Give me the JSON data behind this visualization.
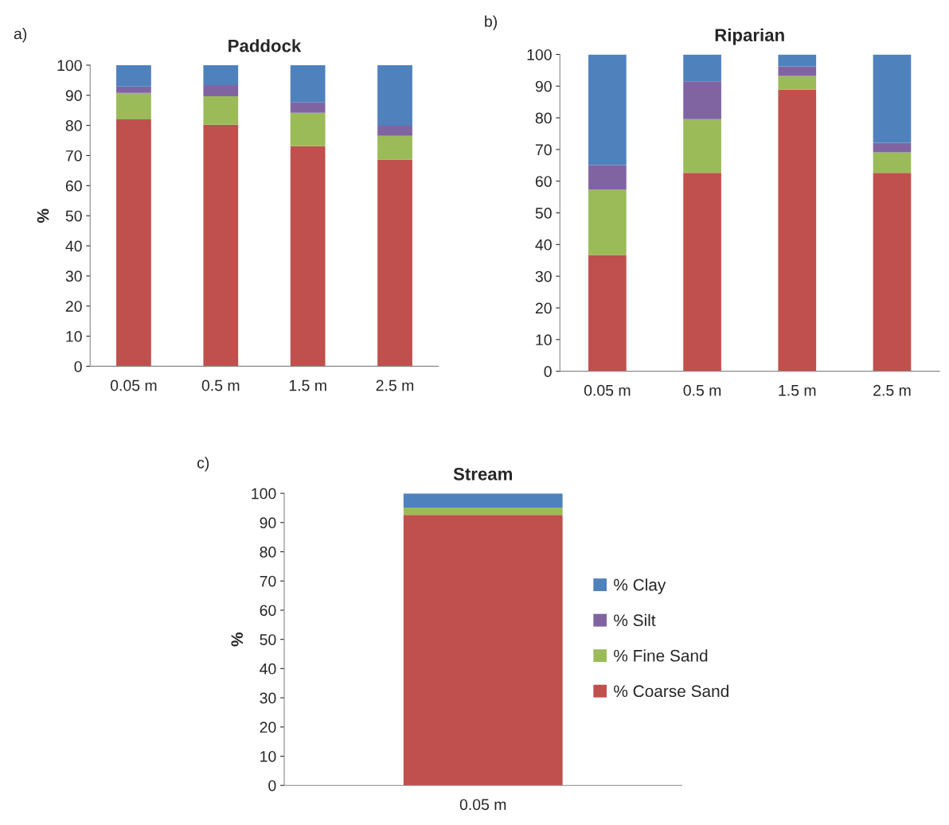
{
  "chart_data": [
    {
      "type": "bar",
      "stacked": true,
      "title": "Paddock",
      "ylabel": "%",
      "annotations": [
        "a)"
      ],
      "categories": [
        "0.05 m",
        "0.5 m",
        "1.5 m",
        "2.5 m"
      ],
      "ylim": [
        0,
        100
      ],
      "yticks": [
        0,
        10,
        20,
        30,
        40,
        50,
        60,
        70,
        80,
        90,
        100
      ],
      "grid": false,
      "legend": false,
      "series": [
        {
          "color": "#c0504d",
          "values": [
            82,
            80.2,
            73.1,
            68.6
          ]
        },
        {
          "color": "#9bbb59",
          "values": [
            8.8,
            9.5,
            11.1,
            7.9
          ]
        },
        {
          "color": "#8064a2",
          "values": [
            2.1,
            3.7,
            3.4,
            3.4
          ]
        },
        {
          "color": "#4f81bd",
          "values": [
            7.1,
            6.6,
            12.4,
            20.1
          ]
        }
      ]
    },
    {
      "type": "bar",
      "stacked": true,
      "title": "Riparian",
      "annotations": [
        "b)"
      ],
      "categories": [
        "0.05 m",
        "0.5 m",
        "1.5 m",
        "2.5 m"
      ],
      "ylim": [
        0,
        100
      ],
      "yticks": [
        0,
        10,
        20,
        30,
        40,
        50,
        60,
        70,
        80,
        90,
        100
      ],
      "grid": false,
      "legend": false,
      "series": [
        {
          "color": "#c0504d",
          "values": [
            36.7,
            62.6,
            88.9,
            62.6
          ]
        },
        {
          "color": "#9bbb59",
          "values": [
            20.6,
            17,
            4.3,
            6.5
          ]
        },
        {
          "color": "#8064a2",
          "values": [
            7.8,
            11.9,
            3,
            3
          ]
        },
        {
          "color": "#4f81bd",
          "values": [
            34.9,
            8.5,
            3.8,
            27.9
          ]
        }
      ]
    },
    {
      "type": "bar",
      "stacked": true,
      "title": "Stream",
      "ylabel": "%",
      "annotations": [
        "c)"
      ],
      "categories": [
        "0.05 m"
      ],
      "ylim": [
        0,
        100
      ],
      "yticks": [
        0,
        10,
        20,
        30,
        40,
        50,
        60,
        70,
        80,
        90,
        100
      ],
      "grid": false,
      "legend": "right",
      "series": [
        {
          "name": "% Coarse Sand",
          "color": "#c0504d",
          "values": [
            92.6
          ]
        },
        {
          "name": "% Fine Sand",
          "color": "#9bbb59",
          "values": [
            2.5
          ]
        },
        {
          "name": "% Silt",
          "color": "#8064a2",
          "values": [
            0
          ]
        },
        {
          "name": "% Clay",
          "color": "#4f81bd",
          "values": [
            4.9
          ]
        }
      ]
    }
  ]
}
